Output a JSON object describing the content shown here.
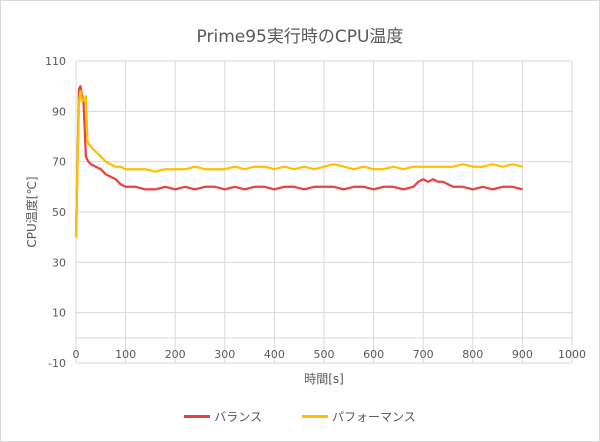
{
  "chart_data": {
    "type": "line",
    "title": "Prime95実行時のCPU温度",
    "xlabel": "時間[s]",
    "ylabel": "CPU温度[℃]",
    "xlim": [
      0,
      1000
    ],
    "ylim": [
      -10,
      110
    ],
    "xticks": [
      0,
      100,
      200,
      300,
      400,
      500,
      600,
      700,
      800,
      900,
      1000
    ],
    "yticks": [
      -10,
      10,
      30,
      50,
      70,
      90,
      110
    ],
    "grid": true,
    "legend_position": "bottom",
    "series": [
      {
        "name": "バランス",
        "color": "#e84343",
        "x": [
          0,
          3,
          6,
          9,
          12,
          15,
          20,
          25,
          30,
          40,
          50,
          60,
          70,
          80,
          90,
          100,
          120,
          140,
          160,
          180,
          200,
          220,
          240,
          260,
          280,
          300,
          320,
          340,
          360,
          380,
          400,
          420,
          440,
          460,
          480,
          500,
          520,
          540,
          560,
          580,
          600,
          620,
          640,
          660,
          680,
          690,
          700,
          710,
          720,
          730,
          740,
          750,
          760,
          780,
          800,
          820,
          840,
          860,
          880,
          900
        ],
        "values": [
          40,
          70,
          99,
          100,
          96,
          95,
          72,
          70,
          69,
          68,
          67,
          65,
          64,
          63,
          61,
          60,
          60,
          59,
          59,
          60,
          59,
          60,
          59,
          60,
          60,
          59,
          60,
          59,
          60,
          60,
          59,
          60,
          60,
          59,
          60,
          60,
          60,
          59,
          60,
          60,
          59,
          60,
          60,
          59,
          60,
          62,
          63,
          62,
          63,
          62,
          62,
          61,
          60,
          60,
          59,
          60,
          59,
          60,
          60,
          59
        ]
      },
      {
        "name": "パフォーマンス",
        "color": "#ffc000",
        "x": [
          0,
          3,
          6,
          9,
          12,
          15,
          18,
          20,
          23,
          26,
          30,
          40,
          50,
          60,
          70,
          80,
          90,
          100,
          120,
          140,
          160,
          180,
          200,
          220,
          240,
          260,
          280,
          300,
          320,
          340,
          360,
          380,
          400,
          420,
          440,
          460,
          480,
          500,
          520,
          540,
          560,
          580,
          600,
          620,
          640,
          660,
          680,
          700,
          720,
          740,
          760,
          780,
          800,
          820,
          840,
          860,
          880,
          900
        ],
        "values": [
          40,
          70,
          94,
          98,
          94,
          95,
          94,
          96,
          78,
          77,
          76,
          74,
          72,
          70,
          69,
          68,
          68,
          67,
          67,
          67,
          66,
          67,
          67,
          67,
          68,
          67,
          67,
          67,
          68,
          67,
          68,
          68,
          67,
          68,
          67,
          68,
          67,
          68,
          69,
          68,
          67,
          68,
          67,
          67,
          68,
          67,
          68,
          68,
          68,
          68,
          68,
          69,
          68,
          68,
          69,
          68,
          69,
          68
        ]
      }
    ]
  },
  "legend": {
    "items": [
      {
        "label": "バランス",
        "color": "#e84343"
      },
      {
        "label": "パフォーマンス",
        "color": "#ffc000"
      }
    ]
  }
}
